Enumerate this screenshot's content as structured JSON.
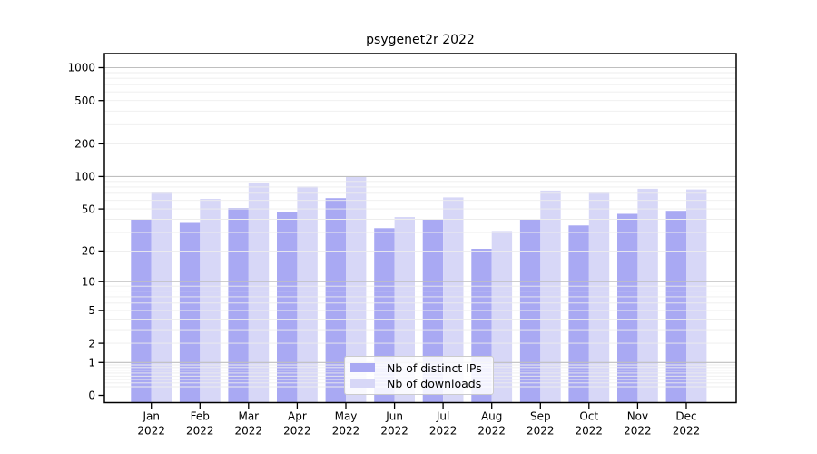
{
  "figure": {
    "background": "#ffffff"
  },
  "chart_data": {
    "type": "bar",
    "title": "psygenet2r 2022",
    "categories": [
      "Jan 2022",
      "Feb 2022",
      "Mar 2022",
      "Apr 2022",
      "May 2022",
      "Jun 2022",
      "Jul 2022",
      "Aug 2022",
      "Sep 2022",
      "Oct 2022",
      "Nov 2022",
      "Dec 2022"
    ],
    "series": [
      {
        "name": "Nb of distinct IPs",
        "color": "#a9a9f3",
        "values": [
          40,
          37,
          51,
          47,
          63,
          33,
          40,
          21,
          40,
          35,
          45,
          48
        ]
      },
      {
        "name": "Nb of downloads",
        "color": "#d7d7f7",
        "values": [
          72,
          62,
          87,
          81,
          100,
          42,
          64,
          31,
          74,
          71,
          77,
          76
        ]
      }
    ],
    "yscale": "log10(1+x)",
    "yticks": [
      0,
      1,
      2,
      5,
      10,
      20,
      50,
      100,
      200,
      500,
      1000
    ],
    "ylim": [
      0,
      1300
    ],
    "xlabel": "",
    "ylabel": "",
    "grid": {
      "axis": "y",
      "major_color": "#bfbfbf",
      "minor_color": "#ededed"
    },
    "legend_position": "bottom-center",
    "axis_color": "#000000",
    "text_color": "#000000"
  }
}
